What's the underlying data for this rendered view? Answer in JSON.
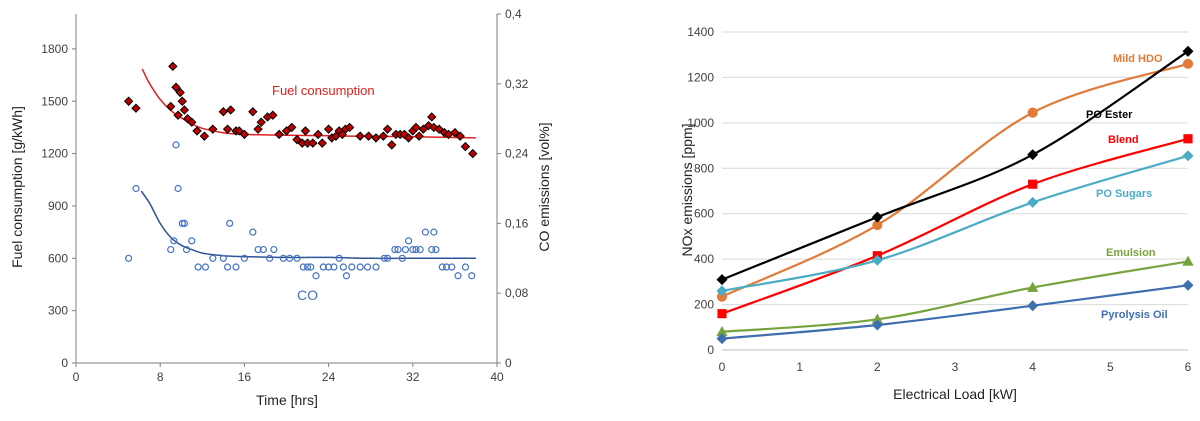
{
  "chart_data": [
    {
      "type": "scatter",
      "title": "",
      "xlabel": "Time [hrs]",
      "ylabel_left": "Fuel consumption [g/kWh]",
      "ylabel_right": "CO emissions [vol%]",
      "xlim": [
        0,
        40
      ],
      "ylim_left": [
        0,
        2000
      ],
      "ylim_right": [
        0,
        0.4
      ],
      "x_ticks": [
        "0",
        "8",
        "16",
        "24",
        "32",
        "40"
      ],
      "y_left_ticks": [
        "0",
        "300",
        "600",
        "900",
        "1200",
        "1500",
        "1800"
      ],
      "y_right_ticks": [
        "0",
        "0,08",
        "0,16",
        "0,24",
        "0,32",
        "0,4"
      ],
      "grid": false,
      "annotations": {
        "fuel": "Fuel consumption",
        "co": "CO"
      },
      "colors": {
        "fuel_marker": "#c00000",
        "fuel_curve": "#e02020",
        "co_marker": "#4472c4",
        "co_curve": "#2e5597"
      },
      "series": [
        {
          "name": "Fuel consumption",
          "marker": "diamond",
          "axis": "left",
          "points": [
            [
              5,
              1500
            ],
            [
              5.7,
              1460
            ],
            [
              9,
              1470
            ],
            [
              9.2,
              1700
            ],
            [
              9.5,
              1580
            ],
            [
              9.7,
              1420
            ],
            [
              9.9,
              1550
            ],
            [
              10.1,
              1500
            ],
            [
              10.3,
              1450
            ],
            [
              10.6,
              1400
            ],
            [
              11,
              1380
            ],
            [
              11.5,
              1330
            ],
            [
              12.2,
              1300
            ],
            [
              13,
              1340
            ],
            [
              14,
              1440
            ],
            [
              14.4,
              1340
            ],
            [
              14.7,
              1450
            ],
            [
              15.2,
              1330
            ],
            [
              15.5,
              1330
            ],
            [
              16,
              1310
            ],
            [
              16.8,
              1440
            ],
            [
              17.3,
              1340
            ],
            [
              17.6,
              1380
            ],
            [
              18.2,
              1410
            ],
            [
              18.7,
              1420
            ],
            [
              19.3,
              1310
            ],
            [
              20,
              1330
            ],
            [
              20.5,
              1350
            ],
            [
              21,
              1280
            ],
            [
              21.5,
              1260
            ],
            [
              21.8,
              1330
            ],
            [
              22,
              1260
            ],
            [
              22.5,
              1260
            ],
            [
              23,
              1310
            ],
            [
              23.4,
              1260
            ],
            [
              24,
              1340
            ],
            [
              24.3,
              1290
            ],
            [
              24.7,
              1300
            ],
            [
              25,
              1330
            ],
            [
              25.3,
              1310
            ],
            [
              25.6,
              1340
            ],
            [
              26,
              1350
            ],
            [
              27,
              1300
            ],
            [
              27.8,
              1300
            ],
            [
              28.5,
              1290
            ],
            [
              29.2,
              1300
            ],
            [
              29.6,
              1340
            ],
            [
              30,
              1250
            ],
            [
              30.4,
              1310
            ],
            [
              30.8,
              1310
            ],
            [
              31.2,
              1310
            ],
            [
              31.6,
              1290
            ],
            [
              32,
              1330
            ],
            [
              32.3,
              1350
            ],
            [
              32.6,
              1300
            ],
            [
              33,
              1340
            ],
            [
              33.5,
              1360
            ],
            [
              33.8,
              1410
            ],
            [
              34,
              1350
            ],
            [
              34.5,
              1340
            ],
            [
              35,
              1320
            ],
            [
              35.4,
              1310
            ],
            [
              36,
              1320
            ],
            [
              36.5,
              1300
            ],
            [
              37,
              1240
            ],
            [
              37.7,
              1200
            ]
          ]
        },
        {
          "name": "CO",
          "marker": "circle",
          "axis": "right",
          "points": [
            [
              5,
              0.12
            ],
            [
              5.7,
              0.2
            ],
            [
              9,
              0.13
            ],
            [
              9.3,
              0.14
            ],
            [
              9.5,
              0.25
            ],
            [
              9.7,
              0.2
            ],
            [
              10.1,
              0.16
            ],
            [
              10.3,
              0.16
            ],
            [
              10.5,
              0.13
            ],
            [
              11,
              0.14
            ],
            [
              11.6,
              0.11
            ],
            [
              12.3,
              0.11
            ],
            [
              13,
              0.12
            ],
            [
              14,
              0.12
            ],
            [
              14.4,
              0.11
            ],
            [
              14.6,
              0.16
            ],
            [
              15.2,
              0.11
            ],
            [
              16,
              0.12
            ],
            [
              16.8,
              0.15
            ],
            [
              17.3,
              0.13
            ],
            [
              17.8,
              0.13
            ],
            [
              18.4,
              0.12
            ],
            [
              18.8,
              0.13
            ],
            [
              19.7,
              0.12
            ],
            [
              20.3,
              0.12
            ],
            [
              21,
              0.12
            ],
            [
              21.6,
              0.11
            ],
            [
              22,
              0.11
            ],
            [
              22.3,
              0.11
            ],
            [
              22.8,
              0.1
            ],
            [
              23.5,
              0.11
            ],
            [
              24,
              0.11
            ],
            [
              24.5,
              0.11
            ],
            [
              25,
              0.12
            ],
            [
              25.4,
              0.11
            ],
            [
              25.7,
              0.1
            ],
            [
              26.2,
              0.11
            ],
            [
              27,
              0.11
            ],
            [
              27.7,
              0.11
            ],
            [
              28.5,
              0.11
            ],
            [
              29.3,
              0.12
            ],
            [
              29.6,
              0.12
            ],
            [
              30.3,
              0.13
            ],
            [
              30.6,
              0.13
            ],
            [
              31,
              0.12
            ],
            [
              31.3,
              0.13
            ],
            [
              31.6,
              0.14
            ],
            [
              32,
              0.13
            ],
            [
              32.3,
              0.13
            ],
            [
              32.7,
              0.13
            ],
            [
              33.2,
              0.15
            ],
            [
              33.8,
              0.13
            ],
            [
              34,
              0.15
            ],
            [
              34.2,
              0.13
            ],
            [
              34.8,
              0.11
            ],
            [
              35.2,
              0.11
            ],
            [
              35.7,
              0.11
            ],
            [
              36.3,
              0.1
            ],
            [
              37,
              0.11
            ],
            [
              37.6,
              0.1
            ]
          ]
        }
      ],
      "trend_curves": [
        {
          "name": "Fuel consumption",
          "axis": "left",
          "points": [
            [
              6.3,
              1685
            ],
            [
              7,
              1600
            ],
            [
              8,
              1510
            ],
            [
              9,
              1448
            ],
            [
              10,
              1405
            ],
            [
              11,
              1370
            ],
            [
              12,
              1345
            ],
            [
              14,
              1320
            ],
            [
              16,
              1310
            ],
            [
              20,
              1305
            ],
            [
              24,
              1302
            ],
            [
              28,
              1299
            ],
            [
              32,
              1297
            ],
            [
              36,
              1292
            ],
            [
              38,
              1290
            ]
          ]
        },
        {
          "name": "CO",
          "axis": "right",
          "points": [
            [
              6.2,
              0.197
            ],
            [
              7,
              0.183
            ],
            [
              8,
              0.16
            ],
            [
              9,
              0.144
            ],
            [
              10,
              0.135
            ],
            [
              11,
              0.13
            ],
            [
              12,
              0.126
            ],
            [
              14,
              0.123
            ],
            [
              16,
              0.122
            ],
            [
              20,
              0.121
            ],
            [
              24,
              0.121
            ],
            [
              28,
              0.12
            ],
            [
              32,
              0.12
            ],
            [
              36,
              0.12
            ],
            [
              38,
              0.12
            ]
          ]
        }
      ]
    },
    {
      "type": "line",
      "title": "",
      "xlabel": "Electrical Load [kW]",
      "ylabel": "NOx emissions [ppm]",
      "xlim": [
        0,
        6
      ],
      "ylim": [
        0,
        1400
      ],
      "x_ticks": [
        "0",
        "1",
        "2",
        "3",
        "4",
        "5",
        "6"
      ],
      "y_ticks": [
        "0",
        "200",
        "400",
        "600",
        "800",
        "1000",
        "1200",
        "1400"
      ],
      "grid": true,
      "x": [
        0,
        2,
        4,
        6
      ],
      "series": [
        {
          "name": "Mild HDO",
          "color": "#e07b39",
          "marker": "circle",
          "values": [
            235,
            550,
            1045,
            1260
          ]
        },
        {
          "name": "PO Ester",
          "color": "#000000",
          "marker": "diamond",
          "values": [
            310,
            585,
            860,
            1315
          ]
        },
        {
          "name": "Blend",
          "color": "#ff0000",
          "marker": "square",
          "values": [
            160,
            415,
            730,
            930
          ]
        },
        {
          "name": "PO Sugars",
          "color": "#4bacc6",
          "marker": "diamond",
          "values": [
            260,
            395,
            650,
            855
          ]
        },
        {
          "name": "Emulsion",
          "color": "#77a33d",
          "marker": "triangle",
          "values": [
            80,
            135,
            275,
            390
          ]
        },
        {
          "name": "Pyrolysis Oil",
          "color": "#3f6faf",
          "marker": "diamond",
          "values": [
            50,
            110,
            195,
            285
          ]
        }
      ]
    }
  ]
}
